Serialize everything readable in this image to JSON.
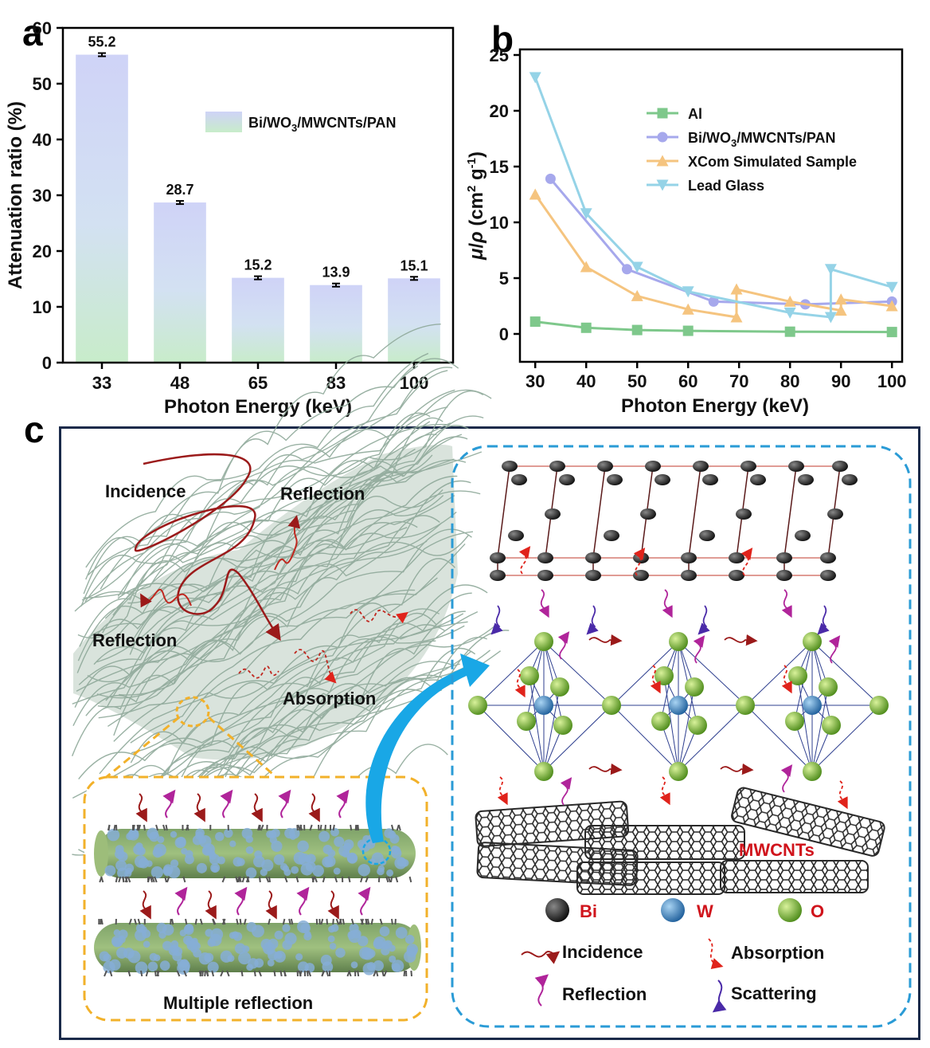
{
  "panels": {
    "a": "a",
    "b": "b",
    "c": "c"
  },
  "chart_data": [
    {
      "type": "bar",
      "xlabel": "Photon Energy (keV)",
      "ylabel": "Attenuation ratio (%)",
      "categories": [
        "33",
        "48",
        "65",
        "83",
        "100"
      ],
      "series": [
        {
          "name": "Bi/WO3/MWCNTs/PAN",
          "values": [
            55.2,
            28.7,
            15.2,
            13.9,
            15.1
          ]
        }
      ],
      "value_labels": [
        "55.2",
        "28.7",
        "15.2",
        "13.9",
        "15.1"
      ],
      "ylim": [
        0,
        60
      ],
      "yticks": [
        0,
        10,
        20,
        30,
        40,
        50,
        60
      ],
      "error_bars": true,
      "legend_position": "top-right",
      "colors": {
        "bar_top": "#cfd3f7",
        "bar_bottom": "#c8ecca"
      }
    },
    {
      "type": "line",
      "xlabel": "Photon Energy (keV)",
      "ylabel": "μ/ρ (cm² g⁻¹)",
      "xlim": [
        27,
        102
      ],
      "ylim": [
        -2.5,
        25.5
      ],
      "xticks": [
        30,
        40,
        50,
        60,
        70,
        80,
        90,
        100
      ],
      "yticks": [
        0,
        5,
        10,
        15,
        20,
        25
      ],
      "legend_position": "top-center",
      "series": [
        {
          "name": "Al",
          "color": "#7ec88b",
          "marker": "square",
          "x": [
            30,
            40,
            50,
            60,
            80,
            100
          ],
          "y": [
            1.1,
            0.55,
            0.35,
            0.28,
            0.2,
            0.17
          ]
        },
        {
          "name": "Bi/WO3/MWCNTs/PAN",
          "color": "#a6a8ec",
          "marker": "circle",
          "x": [
            33,
            48,
            65,
            83,
            100
          ],
          "y": [
            13.9,
            5.8,
            2.9,
            2.65,
            2.9
          ]
        },
        {
          "name": "XCom Simulated Sample",
          "color": "#f5c47f",
          "marker": "triangle-up",
          "x": [
            30,
            40,
            50,
            60,
            69.5,
            69.5,
            80,
            90,
            90,
            100
          ],
          "y": [
            12.5,
            6.0,
            3.4,
            2.2,
            1.5,
            4.0,
            2.9,
            2.1,
            3.1,
            2.5
          ]
        },
        {
          "name": "Lead Glass",
          "color": "#95d3e7",
          "marker": "triangle-down",
          "x": [
            30,
            40,
            50,
            60,
            80,
            88,
            88,
            100
          ],
          "y": [
            23.0,
            10.8,
            6.0,
            3.8,
            1.9,
            1.5,
            5.8,
            4.2
          ]
        }
      ]
    }
  ],
  "schematic": {
    "fiber_labels": {
      "incidence": "Incidence",
      "reflection_top": "Reflection",
      "reflection_left": "Reflection",
      "absorption": "Absorption"
    },
    "inset_title": "Multiple reflection",
    "mwcnts_label": "MWCNTs",
    "atom_legend": [
      {
        "symbol": "Bi",
        "color": "#1a1a1a"
      },
      {
        "symbol": "W",
        "color": "#3a88c6"
      },
      {
        "symbol": "O",
        "color": "#7cc23a"
      }
    ],
    "wave_legend": [
      {
        "label": "Incidence",
        "color": "#9b1a1a"
      },
      {
        "label": "Absorption",
        "color": "#e0231b"
      },
      {
        "label": "Reflection",
        "color": "#b0249a"
      },
      {
        "label": "Scattering",
        "color": "#4a2aa8"
      }
    ],
    "colors": {
      "frame": "#1b2a4a",
      "inset_dash": "#f2b12a",
      "right_dash": "#2a9bd6",
      "fiber": "#8fa99a",
      "arrow": "#19a7e6"
    }
  }
}
